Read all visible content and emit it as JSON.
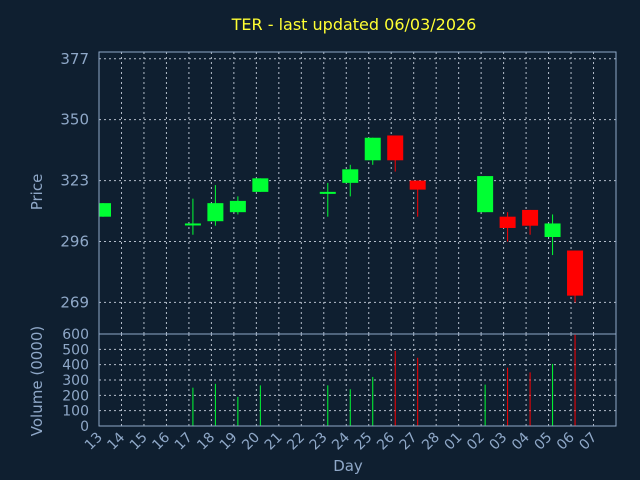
{
  "chart_data": {
    "type": "candlestick",
    "title": "TER - last updated 06/03/2026",
    "xlabel": "Day",
    "price": {
      "ylabel": "Price",
      "ylim": [
        255,
        380
      ],
      "yticks": [
        269,
        296,
        323,
        350,
        377
      ]
    },
    "volume": {
      "ylabel": "Volume (0000)",
      "ylim": [
        0,
        600
      ],
      "yticks": [
        0,
        100,
        200,
        300,
        400,
        500,
        600
      ]
    },
    "categories": [
      "13",
      "14",
      "15",
      "16",
      "17",
      "18",
      "19",
      "20",
      "21",
      "22",
      "23",
      "24",
      "25",
      "26",
      "27",
      "28",
      "01",
      "02",
      "03",
      "04",
      "05",
      "06",
      "07"
    ],
    "candles": [
      {
        "day": "13",
        "open": 307,
        "high": 313,
        "low": 307,
        "close": 313,
        "volume": 0
      },
      {
        "day": "17",
        "open": 304,
        "high": 315,
        "low": 299,
        "close": 304,
        "volume": 250
      },
      {
        "day": "18",
        "open": 305,
        "high": 321,
        "low": 303,
        "close": 313,
        "volume": 275
      },
      {
        "day": "19",
        "open": 309,
        "high": 316,
        "low": 308,
        "close": 314,
        "volume": 190
      },
      {
        "day": "20",
        "open": 318,
        "high": 324,
        "low": 318,
        "close": 324,
        "volume": 265
      },
      {
        "day": "23",
        "open": 318,
        "high": 322,
        "low": 307,
        "close": 318,
        "volume": 265
      },
      {
        "day": "24",
        "open": 322,
        "high": 330,
        "low": 316,
        "close": 328,
        "volume": 240
      },
      {
        "day": "25",
        "open": 332,
        "high": 342,
        "low": 330,
        "close": 342,
        "volume": 320
      },
      {
        "day": "26",
        "open": 343,
        "high": 343,
        "low": 327,
        "close": 332,
        "volume": 490
      },
      {
        "day": "27",
        "open": 323,
        "high": 323,
        "low": 307,
        "close": 319,
        "volume": 445
      },
      {
        "day": "02",
        "open": 309,
        "high": 325,
        "low": 309,
        "close": 325,
        "volume": 270
      },
      {
        "day": "03",
        "open": 307,
        "high": 309,
        "low": 296,
        "close": 302,
        "volume": 380
      },
      {
        "day": "04",
        "open": 310,
        "high": 310,
        "low": 299,
        "close": 303,
        "volume": 350
      },
      {
        "day": "05",
        "open": 298,
        "high": 308,
        "low": 290,
        "close": 304,
        "volume": 405
      },
      {
        "day": "06",
        "open": 292,
        "high": 292,
        "low": 269,
        "close": 272,
        "volume": 595
      }
    ],
    "up_color": "#00ff33",
    "down_color": "#ff0000",
    "grid": true
  }
}
